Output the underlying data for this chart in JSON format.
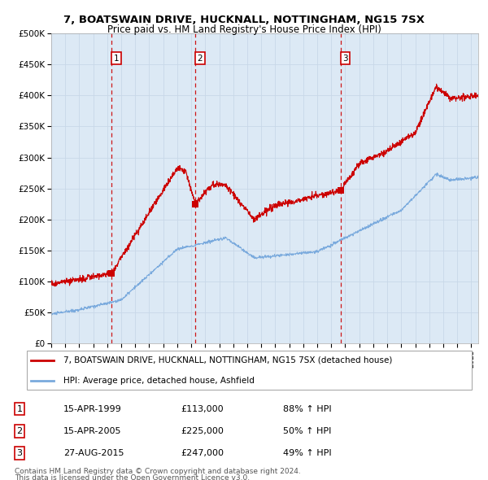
{
  "title": "7, BOATSWAIN DRIVE, HUCKNALL, NOTTINGHAM, NG15 7SX",
  "subtitle": "Price paid vs. HM Land Registry's House Price Index (HPI)",
  "plot_bg_color": "#dce9f5",
  "red_line_color": "#cc0000",
  "blue_line_color": "#7aaadd",
  "dashed_line_color": "#cc0000",
  "ylim": [
    0,
    500000
  ],
  "yticks": [
    0,
    50000,
    100000,
    150000,
    200000,
    250000,
    300000,
    350000,
    400000,
    450000,
    500000
  ],
  "ytick_labels": [
    "£0",
    "£50K",
    "£100K",
    "£150K",
    "£200K",
    "£250K",
    "£300K",
    "£350K",
    "£400K",
    "£450K",
    "£500K"
  ],
  "sale_dates": [
    1999.29,
    2005.29,
    2015.66
  ],
  "sale_prices": [
    113000,
    225000,
    247000
  ],
  "sale_labels": [
    "1",
    "2",
    "3"
  ],
  "legend_line1": "7, BOATSWAIN DRIVE, HUCKNALL, NOTTINGHAM, NG15 7SX (detached house)",
  "legend_line2": "HPI: Average price, detached house, Ashfield",
  "table_data": [
    [
      "1",
      "15-APR-1999",
      "£113,000",
      "88% ↑ HPI"
    ],
    [
      "2",
      "15-APR-2005",
      "£225,000",
      "50% ↑ HPI"
    ],
    [
      "3",
      "27-AUG-2015",
      "£247,000",
      "49% ↑ HPI"
    ]
  ],
  "footnote1": "Contains HM Land Registry data © Crown copyright and database right 2024.",
  "footnote2": "This data is licensed under the Open Government Licence v3.0."
}
